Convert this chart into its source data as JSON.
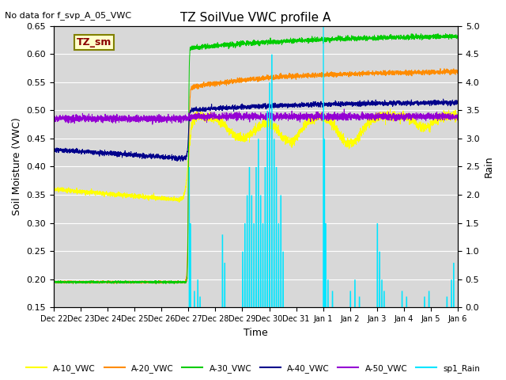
{
  "title": "TZ SoilVue VWC profile A",
  "subtitle": "No data for f_svp_A_05_VWC",
  "xlabel": "Time",
  "ylabel_left": "Soil Moisture (VWC)",
  "ylabel_right": "Rain",
  "ylim_left": [
    0.15,
    0.65
  ],
  "ylim_right": [
    0.0,
    5.0
  ],
  "yticks_left": [
    0.15,
    0.2,
    0.25,
    0.3,
    0.35,
    0.4,
    0.45,
    0.5,
    0.55,
    0.6,
    0.65
  ],
  "yticks_right": [
    0.0,
    0.5,
    1.0,
    1.5,
    2.0,
    2.5,
    3.0,
    3.5,
    4.0,
    4.5,
    5.0
  ],
  "bg_color": "#d8d8d8",
  "colors": {
    "A10": "#ffff00",
    "A20": "#ff8c00",
    "A30": "#00cc00",
    "A40": "#00008b",
    "A50": "#9400d3",
    "Rain": "#00e5ff"
  },
  "legend_box_color": "#ffffcc",
  "legend_box_text": "TZ_sm",
  "legend_box_text_color": "#8b0000"
}
